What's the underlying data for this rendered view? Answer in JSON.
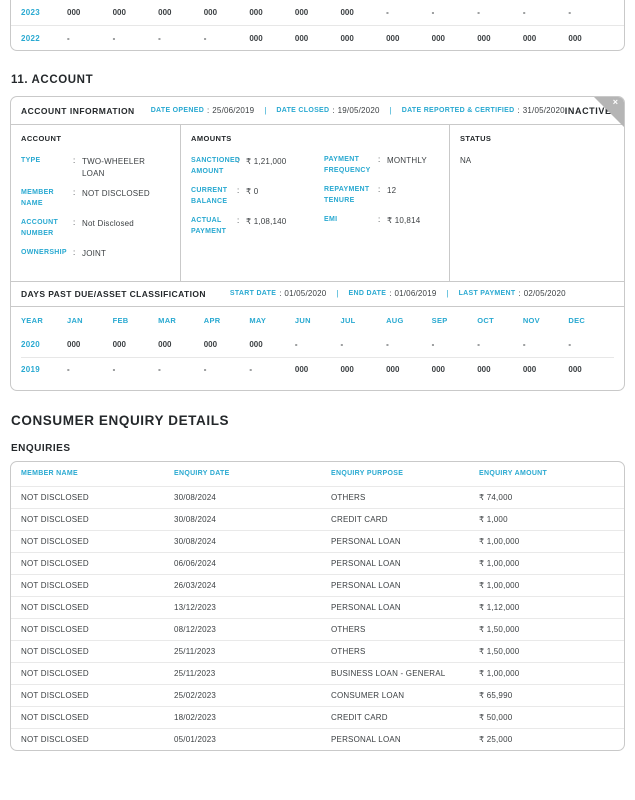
{
  "colors": {
    "accent": "#29a9d1",
    "heading_text": "#24282b",
    "body_text": "#3c4043",
    "card_border": "#c9c9c9",
    "ribbon_gray": "#b5b5b5"
  },
  "previous_account_dpd": {
    "rows": [
      {
        "year": "2023",
        "values": [
          "000",
          "000",
          "000",
          "000",
          "000",
          "000",
          "000",
          "-",
          "-",
          "-",
          "-",
          "-"
        ]
      },
      {
        "year": "2022",
        "values": [
          "-",
          "-",
          "-",
          "-",
          "000",
          "000",
          "000",
          "000",
          "000",
          "000",
          "000",
          "000"
        ]
      }
    ]
  },
  "account_section": {
    "heading": "11. ACCOUNT",
    "header": {
      "title": "ACCOUNT INFORMATION",
      "fields": [
        {
          "label": "DATE OPENED",
          "value": "25/06/2019"
        },
        {
          "label": "DATE CLOSED",
          "value": "19/05/2020"
        },
        {
          "label": "DATE REPORTED & CERTIFIED",
          "value": "31/05/2020"
        }
      ],
      "status_flag": "INACTIVE",
      "close_icon": "×"
    },
    "account_col": {
      "title": "ACCOUNT",
      "fields": [
        {
          "label": "TYPE",
          "value": "TWO-WHEELER LOAN"
        },
        {
          "label": "MEMBER NAME",
          "value": "NOT DISCLOSED"
        },
        {
          "label": "ACCOUNT NUMBER",
          "value": "Not Disclosed"
        },
        {
          "label": "OWNERSHIP",
          "value": "JOINT"
        }
      ]
    },
    "amounts_col": {
      "title": "AMOUNTS",
      "fields_left": [
        {
          "label": "SANCTIONED AMOUNT",
          "value": "₹ 1,21,000"
        },
        {
          "label": "CURRENT BALANCE",
          "value": "₹ 0"
        },
        {
          "label": "ACTUAL PAYMENT",
          "value": "₹ 1,08,140"
        }
      ],
      "fields_right": [
        {
          "label": "PAYMENT FREQUENCY",
          "value": "MONTHLY"
        },
        {
          "label": "REPAYMENT TENURE",
          "value": "12"
        },
        {
          "label": "EMI",
          "value": "₹ 10,814"
        }
      ]
    },
    "status_col": {
      "title": "STATUS",
      "value": "NA"
    },
    "dpd": {
      "title": "DAYS PAST DUE/ASSET CLASSIFICATION",
      "fields": [
        {
          "label": "START DATE",
          "value": "01/05/2020"
        },
        {
          "label": "END DATE",
          "value": "01/06/2019"
        },
        {
          "label": "LAST PAYMENT",
          "value": "02/05/2020"
        }
      ],
      "columns": [
        "YEAR",
        "JAN",
        "FEB",
        "MAR",
        "APR",
        "MAY",
        "JUN",
        "JUL",
        "AUG",
        "SEP",
        "OCT",
        "NOV",
        "DEC"
      ],
      "rows": [
        {
          "year": "2020",
          "values": [
            "000",
            "000",
            "000",
            "000",
            "000",
            "-",
            "-",
            "-",
            "-",
            "-",
            "-",
            "-"
          ]
        },
        {
          "year": "2019",
          "values": [
            "-",
            "-",
            "-",
            "-",
            "-",
            "000",
            "000",
            "000",
            "000",
            "000",
            "000",
            "000"
          ]
        }
      ]
    }
  },
  "enquiry_section": {
    "heading": "CONSUMER ENQUIRY DETAILS",
    "subheading": "ENQUIRIES",
    "columns": [
      "MEMBER NAME",
      "ENQUIRY DATE",
      "ENQUIRY PURPOSE",
      "ENQUIRY AMOUNT"
    ],
    "rows": [
      [
        "NOT DISCLOSED",
        "30/08/2024",
        "OTHERS",
        "₹ 74,000"
      ],
      [
        "NOT DISCLOSED",
        "30/08/2024",
        "CREDIT CARD",
        "₹ 1,000"
      ],
      [
        "NOT DISCLOSED",
        "30/08/2024",
        "PERSONAL LOAN",
        "₹ 1,00,000"
      ],
      [
        "NOT DISCLOSED",
        "06/06/2024",
        "PERSONAL LOAN",
        "₹ 1,00,000"
      ],
      [
        "NOT DISCLOSED",
        "26/03/2024",
        "PERSONAL LOAN",
        "₹ 1,00,000"
      ],
      [
        "NOT DISCLOSED",
        "13/12/2023",
        "PERSONAL LOAN",
        "₹ 1,12,000"
      ],
      [
        "NOT DISCLOSED",
        "08/12/2023",
        "OTHERS",
        "₹ 1,50,000"
      ],
      [
        "NOT DISCLOSED",
        "25/11/2023",
        "OTHERS",
        "₹ 1,50,000"
      ],
      [
        "NOT DISCLOSED",
        "25/11/2023",
        "BUSINESS LOAN - GENERAL",
        "₹ 1,00,000"
      ],
      [
        "NOT DISCLOSED",
        "25/02/2023",
        "CONSUMER LOAN",
        "₹ 65,990"
      ],
      [
        "NOT DISCLOSED",
        "18/02/2023",
        "CREDIT CARD",
        "₹ 50,000"
      ],
      [
        "NOT DISCLOSED",
        "05/01/2023",
        "PERSONAL LOAN",
        "₹ 25,000"
      ]
    ]
  }
}
